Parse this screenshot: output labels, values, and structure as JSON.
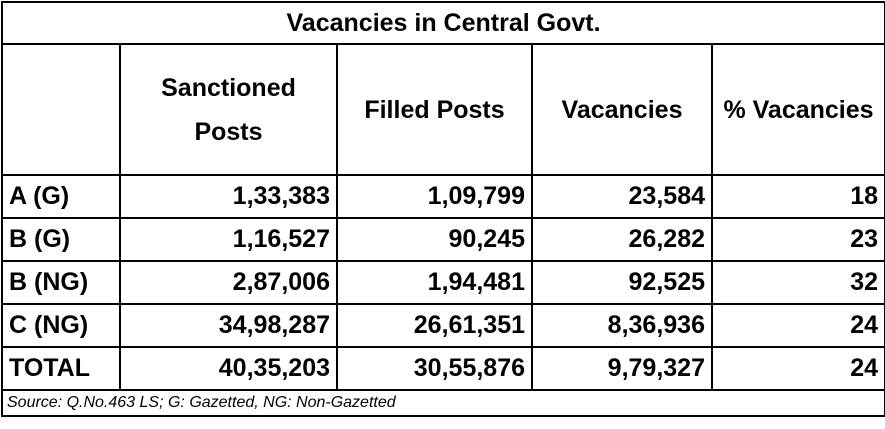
{
  "title": "Vacancies in Central Govt.",
  "table": {
    "header": [
      "Sanctioned Posts",
      "Filled Posts",
      "Vacancies",
      "% Vacancies"
    ],
    "rows": [
      [
        "A (G)",
        "1,33,383",
        "1,09,799",
        "23,584",
        18
      ],
      [
        "B (G)",
        "1,16,527",
        "90,245",
        "26,282",
        23
      ],
      [
        "B (NG)",
        "2,87,006",
        "1,94,481",
        "92,525",
        32
      ],
      [
        "C (NG)",
        "34,98,287",
        "26,61,351",
        "8,36,936",
        24
      ],
      [
        "TOTAL",
        "40,35,203",
        "30,55,876",
        "9,79,327",
        24
      ]
    ]
  },
  "source": "Source: Q.No.463 LS; G: Gazetted, NG: Non-Gazetted"
}
